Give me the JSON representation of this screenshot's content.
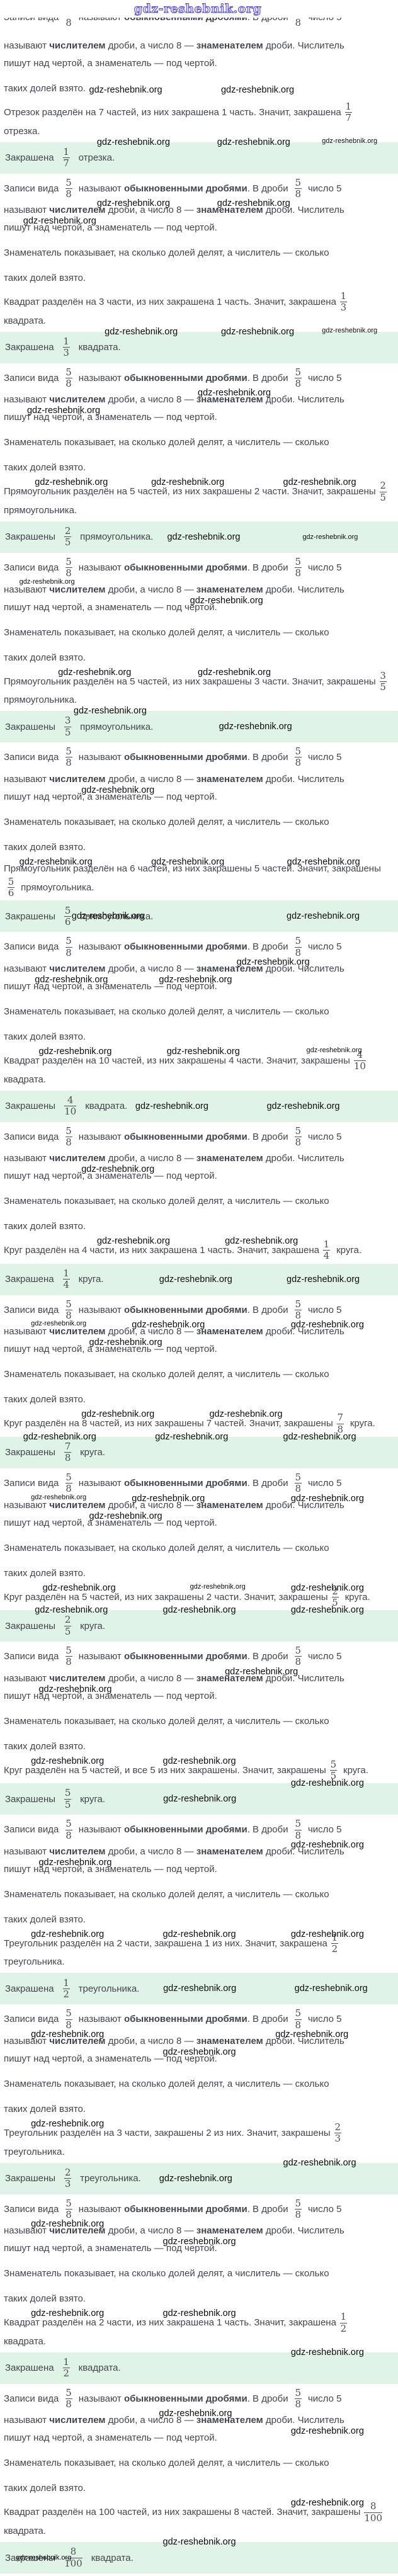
{
  "page": {
    "top_watermark": "gdz-reshebnik.org",
    "watermark_text": "gdz-reshebnik.org",
    "definition": {
      "lead": "Записи вида",
      "frac": {
        "num": "5",
        "den": "8"
      },
      "called": "называют",
      "bold_common": "обыкновенными дробями",
      "in_fraction": ". В дроби",
      "number5": "число 5",
      "line2_called": "называют",
      "bold_numerator": "числителем",
      "line2_mid": "дроби, а число 8 —",
      "bold_denominator": "знаменателем",
      "line2_end": "дроби. Числитель",
      "line3": "пишут над чертой, а знаменатель — под чертой.",
      "line4": "Знаменатель показывает, на сколько долей делят, а числитель — сколько",
      "line5": "таких долей взято."
    },
    "intro": {
      "tail_watermarks": [
        {
          "x": 22
        },
        {
          "x": 56
        }
      ]
    },
    "blocks": [
      {
        "text": "Отрезок разделён на 7 частей, из них закрашена 1 часть. Значит, закрашена",
        "num": "1",
        "den": "7",
        "noun": "отрезка.",
        "verb": "Закрашена",
        "wm_above": [],
        "wm_after": [
          {
            "x": 24
          },
          {
            "x": 55
          },
          {
            "x": 82,
            "small": true
          }
        ],
        "wm_answer": [],
        "wm_def1": [
          {
            "x": 24
          },
          {
            "x": 55
          }
        ],
        "wm_def2": [
          {
            "x": 5
          }
        ]
      },
      {
        "text": "Квадрат разделён на 3 части, из них закрашена 1 часть. Значит, закрашена",
        "num": "1",
        "den": "3",
        "noun": "квадрата.",
        "verb": "Закрашена",
        "wm_above": [],
        "wm_after": [
          {
            "x": 26
          },
          {
            "x": 56
          },
          {
            "x": 82,
            "small": true
          }
        ],
        "wm_answer": [],
        "wm_def1": [
          {
            "x": 50
          }
        ],
        "wm_def2": [
          {
            "x": 6
          }
        ]
      },
      {
        "text": "Прямоугольник разделён на 5 частей, из них закрашены 2 части. Значит, закрашены",
        "num": "2",
        "den": "5",
        "noun": "прямоугольника.",
        "verb": "Закрашены",
        "wm_above": [
          {
            "x": 8
          },
          {
            "x": 38
          },
          {
            "x": 72
          }
        ],
        "wm_after": [],
        "wm_answer": [
          {
            "x": 42
          },
          {
            "x": 76,
            "small": true
          }
        ],
        "wm_def1": [
          {
            "x": 4,
            "small": true
          }
        ],
        "wm_def2": [
          {
            "x": 48
          }
        ]
      },
      {
        "text": "Прямоугольник разделён на 5 частей, из них закрашены 3 части. Значит, закрашены",
        "num": "3",
        "den": "5",
        "noun": "прямоугольника.",
        "verb": "Закрашены",
        "wm_above": [
          {
            "x": 14
          },
          {
            "x": 50
          }
        ],
        "wm_after": [
          {
            "x": 18
          }
        ],
        "wm_answer": [
          {
            "x": 55
          }
        ],
        "wm_def1": [],
        "wm_def2": [
          {
            "x": 20
          }
        ]
      },
      {
        "text": "Прямоугольник разделён на 6 частей, из них закрашены 5 частей. Значит, закрашены",
        "num": "5",
        "den": "6",
        "noun": "прямоугольника.",
        "verb": "Закрашены",
        "wm_above": [
          {
            "x": 4
          },
          {
            "x": 38
          },
          {
            "x": 73
          }
        ],
        "wm_after": [],
        "wm_answer": [
          {
            "x": 18
          },
          {
            "x": 72
          }
        ],
        "wm_def1": [
          {
            "x": 60
          }
        ],
        "wm_def2": [
          {
            "x": 8
          },
          {
            "x": 40
          }
        ]
      },
      {
        "text": "Квадрат разделён на 10 частей, из них закрашены 4 части. Значит, закрашены",
        "num": "4",
        "den": "10",
        "noun": "квадрата.",
        "verb": "Закрашены",
        "wm_above": [
          {
            "x": 9
          },
          {
            "x": 42
          },
          {
            "x": 78,
            "small": true
          }
        ],
        "wm_after": [],
        "wm_answer": [
          {
            "x": 34
          },
          {
            "x": 67
          }
        ],
        "wm_def1": [],
        "wm_def2": [
          {
            "x": 20
          }
        ]
      },
      {
        "text": "Круг разделён на 4 части, из них закрашена 1 часть. Значит, закрашена",
        "num": "1",
        "den": "4",
        "noun": "круга.",
        "verb": "Закрашена",
        "wm_above": [
          {
            "x": 24
          },
          {
            "x": 57
          }
        ],
        "wm_after": [],
        "wm_answer": [
          {
            "x": 40
          },
          {
            "x": 72
          }
        ],
        "wm_def1": [
          {
            "x": 7,
            "small": true
          },
          {
            "x": 33
          },
          {
            "x": 74
          }
        ],
        "wm_def2": [
          {
            "x": 22
          }
        ]
      },
      {
        "text": "Круг разделён на 8 частей, из них закрашены 7 частей. Значит, закрашены",
        "num": "7",
        "den": "8",
        "noun": "круга.",
        "verb": "Закрашены",
        "wm_above": [
          {
            "x": 53
          },
          {
            "x": 20
          }
        ],
        "wm_after": [
          {
            "x": 5
          },
          {
            "x": 39
          },
          {
            "x": 72
          }
        ],
        "wm_answer": [],
        "wm_def1": [
          {
            "x": 7,
            "small": true
          },
          {
            "x": 33
          },
          {
            "x": 74
          }
        ],
        "wm_def2": [
          {
            "x": 22
          }
        ]
      },
      {
        "text": "Круг разделён на 5 частей, из них закрашены 2 части. Значит, закрашены",
        "num": "2",
        "den": "5",
        "noun": "круга.",
        "verb": "Закрашены",
        "wm_above": [
          {
            "x": 10
          },
          {
            "x": 48,
            "small": true
          },
          {
            "x": 74
          }
        ],
        "wm_after": [
          {
            "x": 8
          },
          {
            "x": 41
          },
          {
            "x": 74
          }
        ],
        "wm_answer": [],
        "wm_def1": [
          {
            "x": 57
          }
        ],
        "wm_def2": [
          {
            "x": 9
          }
        ]
      },
      {
        "text": "Круг разделён на 5 частей, и все 5 из них закрашены. Значит, закрашены",
        "num": "5",
        "den": "5",
        "noun": "круга.",
        "verb": "Закрашены",
        "wm_above": [
          {
            "x": 7
          },
          {
            "x": 41
          }
        ],
        "wm_after": [
          {
            "x": 74
          }
        ],
        "wm_answer": [
          {
            "x": 41
          }
        ],
        "wm_def1": [
          {
            "x": 74
          }
        ],
        "wm_def2": [
          {
            "x": 9
          }
        ]
      },
      {
        "text": "Треугольник разделён на 2 части, закрашена 1 из них. Значит, закрашена",
        "num": "1",
        "den": "2",
        "noun": "треугольника.",
        "verb": "Закрашена",
        "wm_above": [
          {
            "x": 7
          },
          {
            "x": 41
          },
          {
            "x": 74
          }
        ],
        "wm_after": [],
        "wm_answer": [
          {
            "x": 41
          },
          {
            "x": 74
          }
        ],
        "wm_def1": [
          {
            "x": 7
          },
          {
            "x": 70
          }
        ],
        "wm_def2": [
          {
            "x": 41
          }
        ]
      },
      {
        "text": "Треугольник разделён на 3 части, закрашены 2 из них. Значит, закрашены",
        "num": "2",
        "den": "3",
        "noun": "треугольника.",
        "verb": "Закрашены",
        "wm_above": [
          {
            "x": 7
          }
        ],
        "wm_after": [
          {
            "x": 72
          }
        ],
        "wm_answer": [
          {
            "x": 40
          }
        ],
        "wm_def1": [
          {
            "x": 7
          }
        ],
        "wm_def2": [
          {
            "x": 41
          }
        ]
      },
      {
        "text": "Квадрат разделён на 2 части, из них закрашена 1 часть. Значит, закрашена",
        "num": "1",
        "den": "2",
        "noun": "квадрата.",
        "verb": "Закрашена",
        "wm_above": [
          {
            "x": 7
          },
          {
            "x": 41
          }
        ],
        "wm_after": [
          {
            "x": 74
          }
        ],
        "wm_answer": [],
        "wm_def1": [
          {
            "x": 40
          }
        ],
        "wm_def2": [
          {
            "x": 74
          }
        ]
      },
      {
        "text": "Квадрат разделён на 100 частей, из них закрашены 8 частей. Значит, закрашены",
        "num": "8",
        "den": "100",
        "noun": "квадрата.",
        "verb": "Закрашены",
        "wm_above": [
          {
            "x": 74
          }
        ],
        "wm_after": [
          {
            "x": 41
          }
        ],
        "wm_answer": [
          {
            "x": 4,
            "small": true
          }
        ],
        "def_after": false,
        "wm_def1": [],
        "wm_def2": []
      }
    ]
  }
}
